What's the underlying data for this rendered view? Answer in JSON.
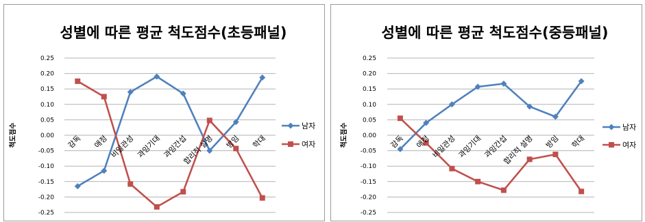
{
  "chart_data": [
    {
      "type": "line",
      "title": "성별에 따른 평균 척도점수(초등패널)",
      "ylabel": "척도점수",
      "xlabel": "",
      "categories": [
        "감독",
        "애정",
        "비일관성",
        "과잉기대",
        "과잉간섭",
        "합리적 설명",
        "방임",
        "학대"
      ],
      "ylim": [
        -0.25,
        0.25
      ],
      "yticks": [
        "0.25",
        "0.20",
        "0.15",
        "0.10",
        "0.05",
        "0.00",
        "-0.05",
        "-0.10",
        "-0.15",
        "-0.20",
        "-0.25"
      ],
      "grid": true,
      "legend": "right",
      "series": [
        {
          "name": "남자",
          "color": "#4f81bd",
          "marker": "diamond",
          "values": [
            -0.165,
            -0.115,
            0.14,
            0.19,
            0.135,
            -0.05,
            0.043,
            0.187
          ]
        },
        {
          "name": "여자",
          "color": "#c0504d",
          "marker": "square",
          "values": [
            0.175,
            0.125,
            -0.158,
            -0.232,
            -0.183,
            0.048,
            -0.043,
            -0.203
          ]
        }
      ]
    },
    {
      "type": "line",
      "title": "성별에 따른 평균 척도점수(중등패널)",
      "ylabel": "척도점수",
      "xlabel": "",
      "categories": [
        "감독",
        "애정",
        "비일관성",
        "과잉기대",
        "과잉간섭",
        "합리적 설명",
        "방임",
        "학대"
      ],
      "ylim": [
        -0.25,
        0.25
      ],
      "yticks": [
        "0.25",
        "0.20",
        "0.15",
        "0.10",
        "0.05",
        "0.00",
        "-0.05",
        "-0.10",
        "-0.15",
        "-0.20",
        "-0.25"
      ],
      "grid": true,
      "legend": "right",
      "series": [
        {
          "name": "남자",
          "color": "#4f81bd",
          "marker": "diamond",
          "values": [
            -0.045,
            0.04,
            0.1,
            0.157,
            0.167,
            0.093,
            0.06,
            0.175
          ]
        },
        {
          "name": "여자",
          "color": "#c0504d",
          "marker": "square",
          "values": [
            0.055,
            -0.025,
            -0.108,
            -0.15,
            -0.178,
            -0.078,
            -0.062,
            -0.182
          ]
        }
      ]
    }
  ]
}
